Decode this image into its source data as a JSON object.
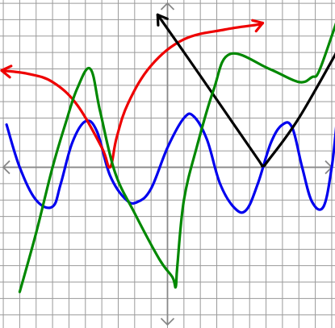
{
  "chart_data": {
    "type": "line",
    "title": "",
    "xlabel": "",
    "ylabel": "",
    "xlim": [
      -10.2,
      10.2
    ],
    "ylim": [
      -9.8,
      10.2
    ],
    "grid": true,
    "legend": "none",
    "axis_color": "#888888",
    "grid_color": "#9a9a9a",
    "series": [
      {
        "color": "#0000ee",
        "points": [
          [
            -9.8,
            2.6
          ],
          [
            -9.0,
            0
          ],
          [
            -8.0,
            -2.0
          ],
          [
            -7.0,
            -2.4
          ],
          [
            -6.5,
            -1.0
          ],
          [
            -5.8,
            1.5
          ],
          [
            -5.0,
            2.8
          ],
          [
            -4.3,
            2.2
          ],
          [
            -3.5,
            -0.5
          ],
          [
            -2.5,
            -2.0
          ],
          [
            -1.8,
            -2.1
          ],
          [
            -1.0,
            -1.3
          ],
          [
            0,
            1.2
          ],
          [
            1.0,
            3.0
          ],
          [
            1.6,
            3.1
          ],
          [
            2.4,
            1.7
          ],
          [
            3.2,
            -1.0
          ],
          [
            4.1,
            -2.5
          ],
          [
            4.8,
            -2.6
          ],
          [
            5.5,
            -1.0
          ],
          [
            6.3,
            1.5
          ],
          [
            7.0,
            2.6
          ],
          [
            7.6,
            2.4
          ],
          [
            8.2,
            0
          ],
          [
            8.8,
            -2.1
          ],
          [
            9.5,
            -2.4
          ],
          [
            10.0,
            0
          ],
          [
            10.3,
            2.7
          ]
        ]
      },
      {
        "color": "#ee0000",
        "arrow_start": true,
        "arrow_end": true,
        "points": [
          [
            -10.1,
            5.9
          ],
          [
            -8.5,
            5.7
          ],
          [
            -7.0,
            5.2
          ],
          [
            -5.5,
            3.8
          ],
          [
            -4.0,
            1.2
          ],
          [
            -3.5,
            0
          ],
          [
            -3.1,
            1.8
          ],
          [
            -2.4,
            3.9
          ],
          [
            -1.0,
            6.2
          ],
          [
            1.0,
            7.8
          ],
          [
            3.5,
            8.4
          ],
          [
            5.5,
            8.7
          ],
          [
            5.8,
            8.8
          ]
        ]
      },
      {
        "color": "#000000",
        "arrow_start": true,
        "points": [
          [
            -0.6,
            9.3
          ],
          [
            1.5,
            6.3
          ],
          [
            3.5,
            3.4
          ],
          [
            5.5,
            0.5
          ],
          [
            5.8,
            0.1
          ],
          [
            6.2,
            0.5
          ],
          [
            8.0,
            3.0
          ],
          [
            10.4,
            7.2
          ]
        ]
      },
      {
        "color": "#008800",
        "points": [
          [
            -9.0,
            -7.6
          ],
          [
            -8.0,
            -4.0
          ],
          [
            -7.0,
            0
          ],
          [
            -6.2,
            2.7
          ],
          [
            -5.5,
            4.8
          ],
          [
            -4.7,
            6.0
          ],
          [
            -4.1,
            3.4
          ],
          [
            -3.2,
            -0.3
          ],
          [
            -2.0,
            -2.8
          ],
          [
            -0.5,
            -5.6
          ],
          [
            0.3,
            -6.7
          ],
          [
            0.5,
            -7.3
          ],
          [
            0.6,
            -6.0
          ],
          [
            1.0,
            -2.0
          ],
          [
            1.8,
            1.3
          ],
          [
            2.8,
            4.7
          ],
          [
            3.8,
            6.9
          ],
          [
            6.2,
            6.0
          ],
          [
            8.0,
            5.2
          ],
          [
            8.8,
            5.5
          ],
          [
            9.2,
            5.8
          ],
          [
            10.0,
            8.0
          ],
          [
            10.5,
            9.5
          ]
        ]
      }
    ]
  }
}
